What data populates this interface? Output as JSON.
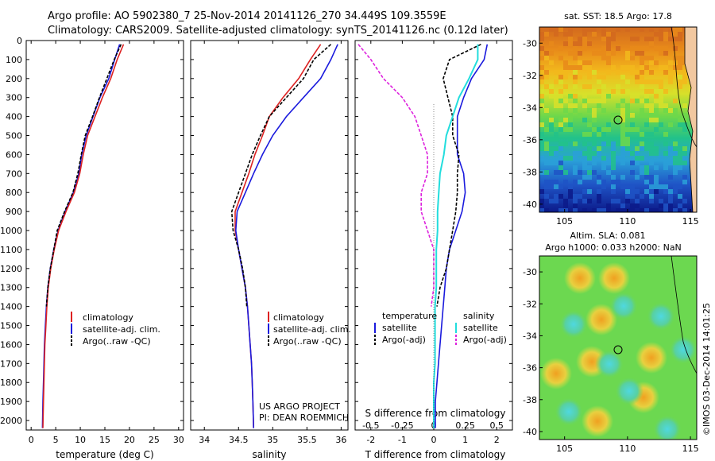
{
  "header": {
    "line1": "Argo profile: AO 5902380_7 25-Nov-2014 20141126_270 34.449S 109.3559E",
    "line2": "Climatology: CARS2009. Satellite-adjusted climatology: synTS_20141126.nc (0.12d later)"
  },
  "colors": {
    "climatology": "#dd2222",
    "satellite": "#1a1add",
    "argo": "#000000",
    "sat_s": "#22dddd",
    "argo_s": "#dd22dd"
  },
  "depth_ticks": [
    "0",
    "100",
    "200",
    "300",
    "400",
    "500",
    "600",
    "700",
    "800",
    "900",
    "1000",
    "1100",
    "1200",
    "1300",
    "1400",
    "1500",
    "1600",
    "1700",
    "1800",
    "1900",
    "2000"
  ],
  "temperature": {
    "xlabel": "temperature (deg C)",
    "xticks": [
      "0",
      "5",
      "10",
      "15",
      "20",
      "25",
      "30"
    ],
    "legend": [
      "climatology",
      "satellite-adj. clim.",
      "Argo(..raw -QC)"
    ]
  },
  "salinity": {
    "xlabel": "salinity",
    "xticks": [
      "34",
      "34.5",
      "35",
      "35.5",
      "36"
    ],
    "legend": [
      "climatology",
      "satellite-adj. clim.",
      "Argo(..raw -QC)"
    ],
    "pi_line1": "US ARGO PROJECT",
    "pi_line2": "PI: DEAN ROEMMICH"
  },
  "difference": {
    "title_top": "S difference from climatology",
    "xlabel": "T difference from climatology",
    "top_ticks": [
      "-0.5",
      "-0.25",
      "0",
      "0.25",
      "0.5"
    ],
    "bottom_ticks": [
      "-2",
      "-1",
      "0",
      "1",
      "2"
    ],
    "legend_t_head": "temperature",
    "legend_s_head": "salinity",
    "legend_t": [
      "satellite",
      "Argo(-adj)"
    ],
    "legend_s": [
      "satellite",
      "Argo(-adj)"
    ]
  },
  "sst_map": {
    "title": "sat. SST: 18.5 Argo: 17.8",
    "yticks": [
      "-30",
      "-32",
      "-34",
      "-36",
      "-38",
      "-40"
    ],
    "xticks": [
      "105",
      "110",
      "115"
    ]
  },
  "sla_map": {
    "title1": "Altim. SLA: 0.081",
    "title2": "Argo h1000: 0.033 h2000: NaN",
    "yticks": [
      "-30",
      "-32",
      "-34",
      "-36",
      "-38",
      "-40"
    ],
    "xticks": [
      "105",
      "110",
      "115"
    ]
  },
  "credit": "©IMOS 03-Dec-2014 14:01:25",
  "chart_data": [
    {
      "type": "line",
      "name": "temperature profile",
      "xlim": [
        -1,
        31
      ],
      "ylim": [
        2050,
        0
      ],
      "xlabel": "temperature (deg C)",
      "series": [
        {
          "name": "climatology",
          "x": [
            18.0,
            17.0,
            15.8,
            14.0,
            12.6,
            11.2,
            10.3,
            9.7,
            8.6,
            6.9,
            5.5,
            4.6,
            3.9,
            3.4,
            3.1,
            2.9,
            2.7,
            2.6,
            2.5,
            2.4,
            2.3
          ],
          "y": [
            20,
            100,
            200,
            300,
            400,
            500,
            600,
            700,
            800,
            900,
            1000,
            1100,
            1200,
            1300,
            1400,
            1500,
            1600,
            1700,
            1800,
            1900,
            2040
          ]
        },
        {
          "name": "satellite-adj. clim.",
          "x": [
            18.8,
            17.5,
            16.2,
            14.5,
            13.0,
            11.5,
            10.6,
            9.9,
            8.8,
            7.1,
            5.6,
            4.7,
            4.0,
            3.5,
            3.2,
            3.0,
            2.8,
            2.7,
            2.6,
            2.5,
            2.4
          ],
          "y": [
            20,
            100,
            200,
            300,
            400,
            500,
            600,
            700,
            800,
            900,
            1000,
            1100,
            1200,
            1300,
            1400,
            1500,
            1600,
            1700,
            1800,
            1900,
            2040
          ]
        },
        {
          "name": "Argo(..raw -QC)",
          "x": [
            18.3,
            16.9,
            15.4,
            13.9,
            12.5,
            11.0,
            10.2,
            9.5,
            8.5,
            6.8,
            5.3,
            4.6,
            3.9,
            3.4,
            3.1
          ],
          "y": [
            20,
            100,
            200,
            300,
            400,
            500,
            600,
            700,
            800,
            900,
            1000,
            1100,
            1200,
            1300,
            1400
          ]
        }
      ]
    },
    {
      "type": "line",
      "name": "salinity profile",
      "xlim": [
        33.8,
        36.1
      ],
      "ylim": [
        2050,
        0
      ],
      "xlabel": "salinity",
      "series": [
        {
          "name": "climatology",
          "x": [
            35.7,
            35.55,
            35.38,
            35.15,
            34.95,
            34.85,
            34.74,
            34.65,
            34.55,
            34.45,
            34.45,
            34.5,
            34.55,
            34.6,
            34.63,
            34.65,
            34.67,
            34.69,
            34.7,
            34.71,
            34.72
          ],
          "y": [
            20,
            100,
            200,
            300,
            400,
            500,
            600,
            700,
            800,
            900,
            1000,
            1100,
            1200,
            1300,
            1400,
            1500,
            1600,
            1700,
            1800,
            1900,
            2040
          ]
        },
        {
          "name": "satellite-adj. clim.",
          "x": [
            35.95,
            35.85,
            35.7,
            35.45,
            35.2,
            35.0,
            34.85,
            34.72,
            34.6,
            34.48,
            34.46,
            34.5,
            34.55,
            34.6,
            34.63,
            34.65,
            34.67,
            34.69,
            34.7,
            34.71,
            34.72
          ],
          "y": [
            20,
            100,
            200,
            300,
            400,
            500,
            600,
            700,
            800,
            900,
            1000,
            1100,
            1200,
            1300,
            1400,
            1500,
            1600,
            1700,
            1800,
            1900,
            2040
          ]
        },
        {
          "name": "Argo(..raw -QC)",
          "x": [
            35.85,
            35.6,
            35.45,
            35.2,
            34.95,
            34.82,
            34.7,
            34.6,
            34.5,
            34.4,
            34.42,
            34.5,
            34.56,
            34.6,
            34.62
          ],
          "y": [
            20,
            100,
            200,
            300,
            400,
            500,
            600,
            700,
            800,
            900,
            1000,
            1100,
            1200,
            1300,
            1400
          ]
        }
      ]
    },
    {
      "type": "line",
      "name": "difference from climatology",
      "xlim": [
        -2.5,
        2.5
      ],
      "ylim": [
        2050,
        0
      ],
      "xlabel": "T difference from climatology",
      "series": [
        {
          "name": "temperature satellite",
          "x": [
            1.7,
            1.6,
            1.2,
            0.95,
            0.75,
            0.75,
            0.75,
            0.95,
            1.0,
            0.9,
            0.7,
            0.5,
            0.4,
            0.35,
            0.3,
            0.25,
            0.2,
            0.15,
            0.1,
            0.05,
            0.05
          ],
          "y": [
            20,
            100,
            200,
            300,
            400,
            500,
            600,
            700,
            800,
            900,
            1000,
            1100,
            1200,
            1300,
            1400,
            1500,
            1600,
            1700,
            1800,
            1900,
            2040
          ]
        },
        {
          "name": "temperature Argo(-adj)",
          "x": [
            1.5,
            0.5,
            0.3,
            0.45,
            0.6,
            0.6,
            0.8,
            0.75,
            0.75,
            0.7,
            0.6,
            0.5,
            0.4,
            0.2,
            0.1
          ],
          "y": [
            20,
            100,
            200,
            300,
            400,
            500,
            600,
            700,
            800,
            900,
            1000,
            1100,
            1200,
            1300,
            1400
          ]
        },
        {
          "name": "salinity satellite",
          "x": [
            0.35,
            0.35,
            0.28,
            0.2,
            0.15,
            0.1,
            0.08,
            0.05,
            0.04,
            0.03,
            0.03,
            0.02,
            0.02,
            0.02,
            0.01,
            0.01,
            0.01,
            0.01,
            0.0,
            0.0,
            0.0
          ],
          "y": [
            20,
            100,
            200,
            300,
            400,
            500,
            600,
            700,
            800,
            900,
            1000,
            1100,
            1200,
            1300,
            1400,
            1500,
            1600,
            1700,
            1800,
            1900,
            2040
          ]
        },
        {
          "name": "salinity Argo(-adj)",
          "x": [
            -0.6,
            -0.5,
            -0.4,
            -0.25,
            -0.15,
            -0.1,
            -0.05,
            -0.05,
            -0.1,
            -0.1,
            -0.05,
            0.0,
            0.0,
            0.0,
            -0.02
          ],
          "y": [
            20,
            100,
            200,
            300,
            400,
            500,
            600,
            700,
            800,
            900,
            1000,
            1100,
            1200,
            1300,
            1400
          ]
        }
      ]
    },
    {
      "type": "heatmap",
      "name": "sat. SST map",
      "xlim": [
        103,
        115.5
      ],
      "ylim": [
        -40.5,
        -29
      ],
      "argo_marker": {
        "lon": 109.36,
        "lat": -34.45
      }
    },
    {
      "type": "heatmap",
      "name": "Altim. SLA map",
      "xlim": [
        103,
        115.5
      ],
      "ylim": [
        -40.5,
        -29
      ],
      "argo_marker": {
        "lon": 109.36,
        "lat": -34.45
      }
    }
  ]
}
